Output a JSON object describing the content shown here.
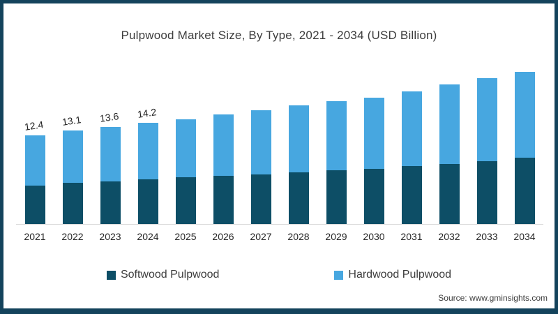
{
  "title": "Pulpwood Market Size, By Type, 2021 - 2034 (USD Billion)",
  "source": "Source: www.gminsights.com",
  "colors": {
    "frame_border": "#14435c",
    "softwood": "#0d4e66",
    "hardwood": "#47a7e0",
    "axis_line": "#d9d9d9",
    "background": "#ffffff"
  },
  "legend": [
    {
      "label": "Softwood Pulpwood",
      "color": "#0d4e66"
    },
    {
      "label": "Hardwood Pulpwood",
      "color": "#47a7e0"
    }
  ],
  "chart_data": {
    "type": "bar",
    "stacked": true,
    "title": "Pulpwood Market Size, By Type, 2021 - 2034 (USD Billion)",
    "unit": "USD Billion",
    "xlabel": "",
    "ylabel": "",
    "ylim": [
      0,
      23
    ],
    "grid": false,
    "legend_position": "bottom",
    "categories": [
      "2021",
      "2022",
      "2023",
      "2024",
      "2025",
      "2026",
      "2027",
      "2028",
      "2029",
      "2030",
      "2031",
      "2032",
      "2033",
      "2034"
    ],
    "series": [
      {
        "name": "Softwood Pulpwood",
        "color": "#0d4e66",
        "values": [
          5.4,
          5.8,
          6.0,
          6.3,
          6.5,
          6.7,
          6.9,
          7.2,
          7.5,
          7.7,
          8.1,
          8.4,
          8.8,
          9.3
        ]
      },
      {
        "name": "Hardwood Pulpwood",
        "color": "#47a7e0",
        "values": [
          7.0,
          7.3,
          7.6,
          7.9,
          8.2,
          8.6,
          9.0,
          9.4,
          9.7,
          10.0,
          10.5,
          11.1,
          11.6,
          12.0
        ]
      }
    ],
    "totals": [
      12.4,
      13.1,
      13.6,
      14.2,
      14.7,
      15.3,
      15.9,
      16.6,
      17.2,
      17.7,
      18.6,
      19.5,
      20.4,
      21.3
    ],
    "data_labels": [
      "12.4",
      "13.1",
      "13.6",
      "14.2",
      "",
      "",
      "",
      "",
      "",
      "",
      "",
      "",
      "",
      ""
    ]
  }
}
